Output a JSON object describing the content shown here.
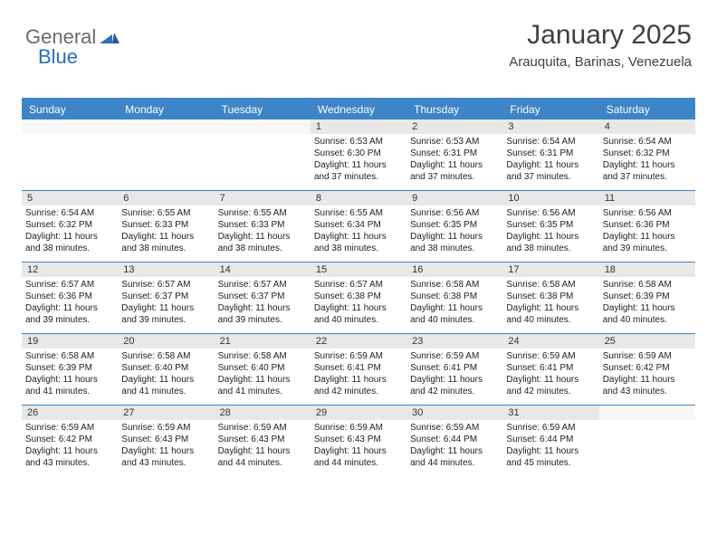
{
  "logo": {
    "part1": "General",
    "part2": "Blue"
  },
  "header": {
    "title": "January 2025",
    "location": "Arauquita, Barinas, Venezuela"
  },
  "colors": {
    "header_bg": "#3d85c6",
    "header_text": "#ffffff",
    "daynum_bg": "#e8e8e8",
    "border": "#3d85c6",
    "body_text": "#222222"
  },
  "day_headers": [
    "Sunday",
    "Monday",
    "Tuesday",
    "Wednesday",
    "Thursday",
    "Friday",
    "Saturday"
  ],
  "weeks": [
    [
      {
        "n": "",
        "empty": true
      },
      {
        "n": "",
        "empty": true
      },
      {
        "n": "",
        "empty": true
      },
      {
        "n": "1",
        "sunrise": "6:53 AM",
        "sunset": "6:30 PM",
        "daylight": "11 hours and 37 minutes."
      },
      {
        "n": "2",
        "sunrise": "6:53 AM",
        "sunset": "6:31 PM",
        "daylight": "11 hours and 37 minutes."
      },
      {
        "n": "3",
        "sunrise": "6:54 AM",
        "sunset": "6:31 PM",
        "daylight": "11 hours and 37 minutes."
      },
      {
        "n": "4",
        "sunrise": "6:54 AM",
        "sunset": "6:32 PM",
        "daylight": "11 hours and 37 minutes."
      }
    ],
    [
      {
        "n": "5",
        "sunrise": "6:54 AM",
        "sunset": "6:32 PM",
        "daylight": "11 hours and 38 minutes."
      },
      {
        "n": "6",
        "sunrise": "6:55 AM",
        "sunset": "6:33 PM",
        "daylight": "11 hours and 38 minutes."
      },
      {
        "n": "7",
        "sunrise": "6:55 AM",
        "sunset": "6:33 PM",
        "daylight": "11 hours and 38 minutes."
      },
      {
        "n": "8",
        "sunrise": "6:55 AM",
        "sunset": "6:34 PM",
        "daylight": "11 hours and 38 minutes."
      },
      {
        "n": "9",
        "sunrise": "6:56 AM",
        "sunset": "6:35 PM",
        "daylight": "11 hours and 38 minutes."
      },
      {
        "n": "10",
        "sunrise": "6:56 AM",
        "sunset": "6:35 PM",
        "daylight": "11 hours and 38 minutes."
      },
      {
        "n": "11",
        "sunrise": "6:56 AM",
        "sunset": "6:36 PM",
        "daylight": "11 hours and 39 minutes."
      }
    ],
    [
      {
        "n": "12",
        "sunrise": "6:57 AM",
        "sunset": "6:36 PM",
        "daylight": "11 hours and 39 minutes."
      },
      {
        "n": "13",
        "sunrise": "6:57 AM",
        "sunset": "6:37 PM",
        "daylight": "11 hours and 39 minutes."
      },
      {
        "n": "14",
        "sunrise": "6:57 AM",
        "sunset": "6:37 PM",
        "daylight": "11 hours and 39 minutes."
      },
      {
        "n": "15",
        "sunrise": "6:57 AM",
        "sunset": "6:38 PM",
        "daylight": "11 hours and 40 minutes."
      },
      {
        "n": "16",
        "sunrise": "6:58 AM",
        "sunset": "6:38 PM",
        "daylight": "11 hours and 40 minutes."
      },
      {
        "n": "17",
        "sunrise": "6:58 AM",
        "sunset": "6:38 PM",
        "daylight": "11 hours and 40 minutes."
      },
      {
        "n": "18",
        "sunrise": "6:58 AM",
        "sunset": "6:39 PM",
        "daylight": "11 hours and 40 minutes."
      }
    ],
    [
      {
        "n": "19",
        "sunrise": "6:58 AM",
        "sunset": "6:39 PM",
        "daylight": "11 hours and 41 minutes."
      },
      {
        "n": "20",
        "sunrise": "6:58 AM",
        "sunset": "6:40 PM",
        "daylight": "11 hours and 41 minutes."
      },
      {
        "n": "21",
        "sunrise": "6:58 AM",
        "sunset": "6:40 PM",
        "daylight": "11 hours and 41 minutes."
      },
      {
        "n": "22",
        "sunrise": "6:59 AM",
        "sunset": "6:41 PM",
        "daylight": "11 hours and 42 minutes."
      },
      {
        "n": "23",
        "sunrise": "6:59 AM",
        "sunset": "6:41 PM",
        "daylight": "11 hours and 42 minutes."
      },
      {
        "n": "24",
        "sunrise": "6:59 AM",
        "sunset": "6:41 PM",
        "daylight": "11 hours and 42 minutes."
      },
      {
        "n": "25",
        "sunrise": "6:59 AM",
        "sunset": "6:42 PM",
        "daylight": "11 hours and 43 minutes."
      }
    ],
    [
      {
        "n": "26",
        "sunrise": "6:59 AM",
        "sunset": "6:42 PM",
        "daylight": "11 hours and 43 minutes."
      },
      {
        "n": "27",
        "sunrise": "6:59 AM",
        "sunset": "6:43 PM",
        "daylight": "11 hours and 43 minutes."
      },
      {
        "n": "28",
        "sunrise": "6:59 AM",
        "sunset": "6:43 PM",
        "daylight": "11 hours and 44 minutes."
      },
      {
        "n": "29",
        "sunrise": "6:59 AM",
        "sunset": "6:43 PM",
        "daylight": "11 hours and 44 minutes."
      },
      {
        "n": "30",
        "sunrise": "6:59 AM",
        "sunset": "6:44 PM",
        "daylight": "11 hours and 44 minutes."
      },
      {
        "n": "31",
        "sunrise": "6:59 AM",
        "sunset": "6:44 PM",
        "daylight": "11 hours and 45 minutes."
      },
      {
        "n": "",
        "empty": true
      }
    ]
  ],
  "labels": {
    "sunrise_prefix": "Sunrise: ",
    "sunset_prefix": "Sunset: ",
    "daylight_prefix": "Daylight: "
  }
}
